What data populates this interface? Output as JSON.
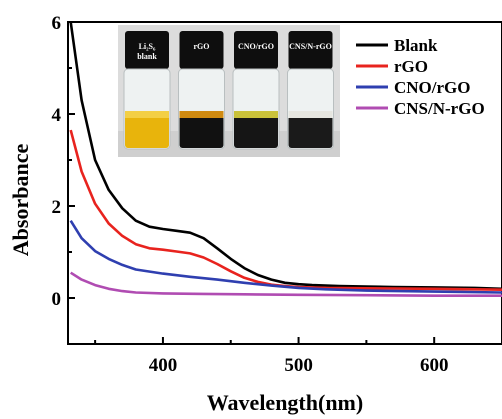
{
  "chart_data": {
    "type": "line",
    "xlabel": "Wavelength(nm)",
    "ylabel": "Absorbance",
    "xlim": [
      330,
      650
    ],
    "ylim": [
      -1,
      6
    ],
    "xticks": [
      400,
      500,
      600
    ],
    "yticks": [
      0,
      2,
      4,
      6
    ],
    "legend_position": "top-right",
    "series": [
      {
        "name": "Blank",
        "color": "#000000",
        "x": [
          332,
          340,
          350,
          360,
          370,
          380,
          390,
          400,
          410,
          420,
          430,
          440,
          450,
          460,
          470,
          480,
          490,
          500,
          510,
          520,
          530,
          550,
          570,
          600,
          630,
          650
        ],
        "y": [
          6.0,
          4.3,
          3.0,
          2.35,
          1.95,
          1.68,
          1.55,
          1.5,
          1.46,
          1.42,
          1.3,
          1.08,
          0.85,
          0.65,
          0.5,
          0.4,
          0.33,
          0.3,
          0.28,
          0.27,
          0.26,
          0.25,
          0.24,
          0.23,
          0.22,
          0.2
        ]
      },
      {
        "name": "rGO",
        "color": "#e8231e",
        "x": [
          332,
          340,
          350,
          360,
          370,
          380,
          390,
          400,
          410,
          420,
          430,
          440,
          450,
          460,
          470,
          480,
          490,
          500,
          520,
          550,
          600,
          650
        ],
        "y": [
          3.65,
          2.75,
          2.05,
          1.62,
          1.35,
          1.17,
          1.08,
          1.05,
          1.01,
          0.97,
          0.88,
          0.74,
          0.58,
          0.44,
          0.35,
          0.29,
          0.26,
          0.24,
          0.22,
          0.21,
          0.2,
          0.18
        ]
      },
      {
        "name": "CNO/rGO",
        "color": "#2f3fb0",
        "x": [
          332,
          340,
          350,
          360,
          370,
          380,
          400,
          420,
          440,
          460,
          480,
          500,
          520,
          550,
          600,
          650
        ],
        "y": [
          1.68,
          1.3,
          1.02,
          0.85,
          0.72,
          0.62,
          0.53,
          0.46,
          0.4,
          0.33,
          0.27,
          0.22,
          0.19,
          0.16,
          0.14,
          0.12
        ]
      },
      {
        "name": "CNS/N-rGO",
        "color": "#b04cb2",
        "x": [
          332,
          340,
          350,
          360,
          370,
          380,
          400,
          430,
          460,
          500,
          550,
          600,
          650
        ],
        "y": [
          0.55,
          0.4,
          0.28,
          0.2,
          0.15,
          0.12,
          0.1,
          0.09,
          0.08,
          0.07,
          0.06,
          0.05,
          0.05
        ]
      }
    ]
  },
  "inset": {
    "bottles": [
      {
        "label_main": "Li₂S₆",
        "label_sub": "blank",
        "liquid": "#e8b40c",
        "liquid_top": "#f3cf45"
      },
      {
        "label_main": "rGO",
        "label_sub": "",
        "liquid": "#111111",
        "liquid_top": "#d08a10"
      },
      {
        "label_main": "CNO/rGO",
        "label_sub": "",
        "liquid": "#151515",
        "liquid_top": "#c9c13a"
      },
      {
        "label_main": "CNS/N-rGO",
        "label_sub": "",
        "liquid": "#1a1a1a",
        "liquid_top": "#e6e6e0"
      }
    ]
  }
}
